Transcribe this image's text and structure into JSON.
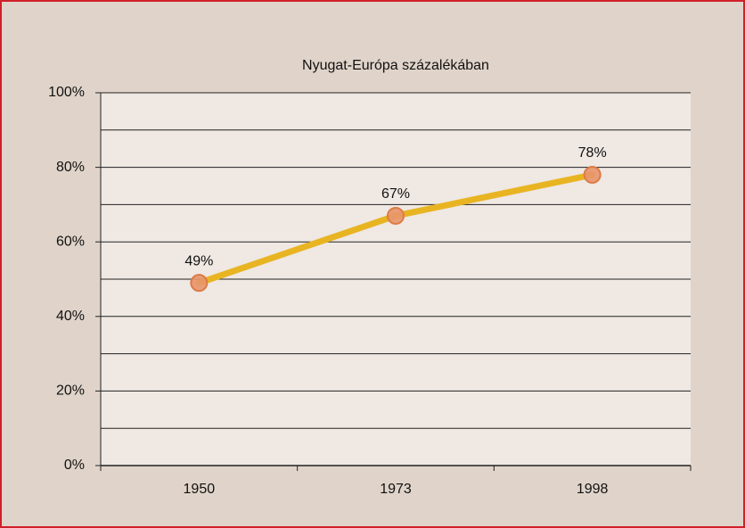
{
  "chart_data": {
    "type": "line",
    "title": "Nyugat-Európa százalékában",
    "categories": [
      "1950",
      "1973",
      "1998"
    ],
    "values": [
      49,
      67,
      78
    ],
    "value_labels": [
      "49%",
      "67%",
      "78%"
    ],
    "color": "#e8b422",
    "marker_color": "#e8956a",
    "ylim": [
      0,
      100
    ],
    "yticks": [
      {
        "value": 0,
        "label": "0%"
      },
      {
        "value": 20,
        "label": "20%"
      },
      {
        "value": 40,
        "label": "40%"
      },
      {
        "value": 60,
        "label": "60%"
      },
      {
        "value": 80,
        "label": "80%"
      },
      {
        "value": 100,
        "label": "100%"
      }
    ],
    "minor_yticks": [
      10,
      30,
      50,
      70,
      90
    ],
    "grid": true
  }
}
